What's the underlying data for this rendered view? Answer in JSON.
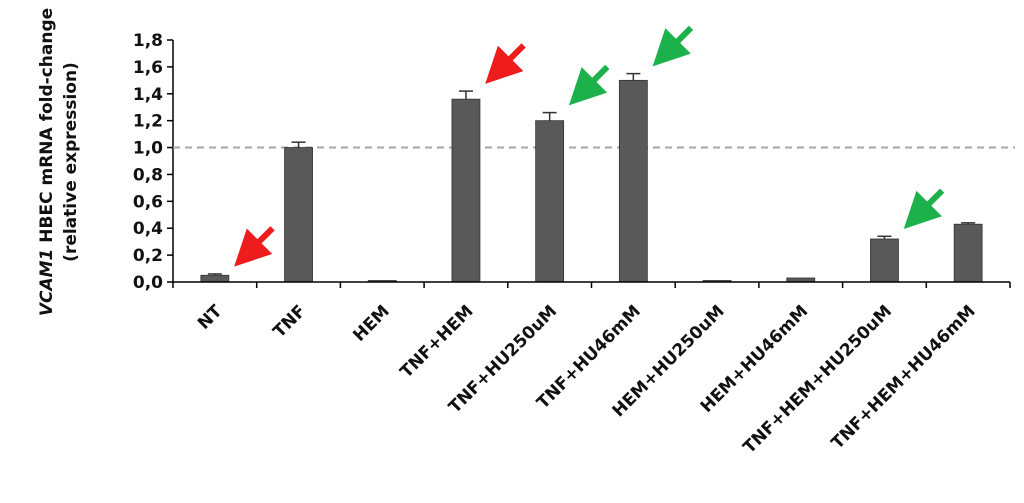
{
  "chart_data": {
    "type": "bar",
    "categories": [
      "NT",
      "TNF",
      "HEM",
      "TNF+HEM",
      "TNF+HU250uM",
      "TNF+HU46mM",
      "HEM+HU250uM",
      "HEM+HU46mM",
      "TNF+HEM+HU250uM",
      "TNF+HEM+HU46mM"
    ],
    "values": [
      0.05,
      1.0,
      0.01,
      1.36,
      1.2,
      1.5,
      0.01,
      0.03,
      0.32,
      0.43
    ],
    "errors": [
      0.01,
      0.04,
      0.0,
      0.06,
      0.06,
      0.05,
      0.0,
      0.0,
      0.02,
      0.01
    ],
    "ylabel_line1_italic": "VCAM1",
    "ylabel_line1_rest": " HBEC  mRNA fold-change",
    "ylabel_line2": "(relative expression)",
    "ylim": [
      0,
      1.8
    ],
    "yticks": [
      "0,0",
      "0,2",
      "0,4",
      "0,6",
      "0,8",
      "1,0",
      "1,2",
      "1,4",
      "1,6",
      "1,8"
    ],
    "reference_line": 1.0,
    "bar_color": "#595959",
    "reference_line_color": "#a6a6a6",
    "arrows": [
      {
        "category": "NT",
        "color": "#ee1c1c"
      },
      {
        "category": "TNF+HEM",
        "color": "#ee1c1c"
      },
      {
        "category": "TNF+HU250uM",
        "color": "#1db14b"
      },
      {
        "category": "TNF+HU46mM",
        "color": "#1db14b"
      },
      {
        "category": "TNF+HEM+HU250uM",
        "color": "#1db14b"
      }
    ]
  }
}
